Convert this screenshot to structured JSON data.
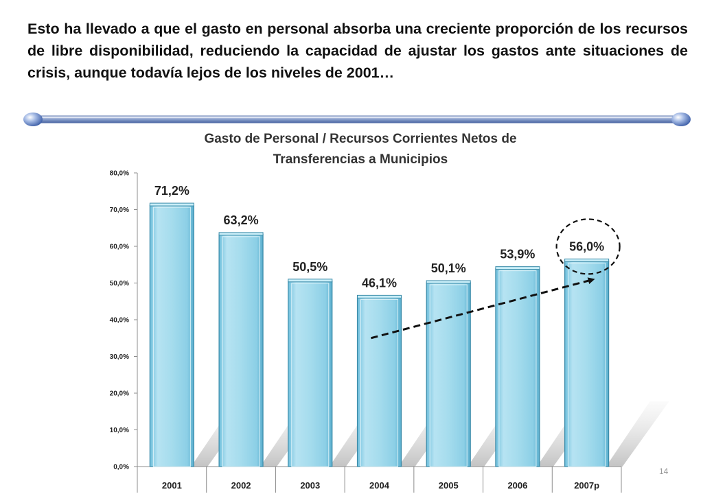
{
  "headline": "Esto ha llevado a que el gasto en personal absorba una creciente proporción de los recursos de libre disponibilidad, reduciendo la capacidad de ajustar los gastos ante situaciones de crisis, aunque todavía lejos de los niveles de 2001…",
  "page_number": "14",
  "chart_data": {
    "type": "bar",
    "title": "Gasto de Personal / Recursos Corrientes Netos de Transferencias a Municipios",
    "title_lines": [
      "Gasto de Personal  /  Recursos Corrientes Netos de",
      "Transferencias a Municipios"
    ],
    "categories": [
      "2001",
      "2002",
      "2003",
      "2004",
      "2005",
      "2006",
      "2007p"
    ],
    "values": [
      71.2,
      63.2,
      50.5,
      46.1,
      50.1,
      53.9,
      56.0
    ],
    "data_labels": [
      "71,2%",
      "63,2%",
      "50,5%",
      "46,1%",
      "50,1%",
      "53,9%",
      "56,0%"
    ],
    "y_ticks": [
      0,
      10,
      20,
      30,
      40,
      50,
      60,
      70,
      80
    ],
    "y_tick_labels": [
      "0,0%",
      "10,0%",
      "20,0%",
      "30,0%",
      "40,0%",
      "50,0%",
      "60,0%",
      "70,0%",
      "80,0%"
    ],
    "ylim": [
      0,
      80
    ],
    "xlabel": "",
    "ylabel": "",
    "grid": false,
    "legend": "none",
    "bar_color": "#9fd7ea",
    "bar_edge_color": "#3a8aa8",
    "highlight_category": "2007p",
    "trend_arrow": {
      "from_category": "2004",
      "from_value": 35,
      "to_category": "2007p",
      "to_value": 51
    }
  }
}
